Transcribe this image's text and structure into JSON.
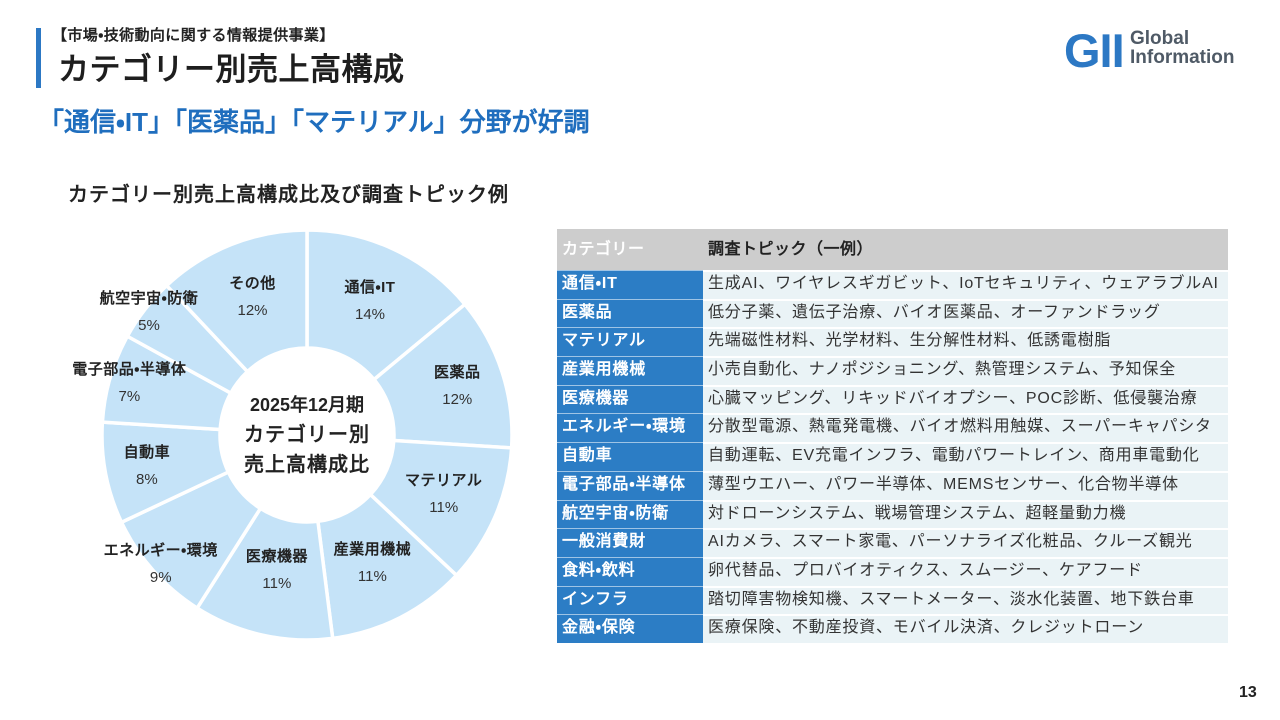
{
  "header": {
    "kicker": "【市場・技術動向に関する情報提供事業】",
    "title": "カテゴリー別売上高構成",
    "subtitle": "「通信・IT」「医薬品」「マテリアル」分野が好調"
  },
  "logo": {
    "mark": "GII",
    "line1": "Global",
    "line2": "Information"
  },
  "chart_data": [
    {
      "type": "pie",
      "donut": true,
      "title": "カテゴリー別売上高構成比及び調査トピック例",
      "center_label": [
        "2025年12月期",
        "カテゴリー別",
        "売上高構成比"
      ],
      "categories": [
        "通信・IT",
        "医薬品",
        "マテリアル",
        "産業用機械",
        "医療機器",
        "エネルギー・環境",
        "自動車",
        "電子部品・半導体",
        "航空宇宙・防衛",
        "その他"
      ],
      "values": [
        14,
        12,
        11,
        11,
        11,
        9,
        8,
        7,
        5,
        12
      ],
      "data_labels": [
        "14%",
        "12%",
        "11%",
        "11%",
        "11%",
        "9%",
        "8%",
        "7%",
        "5%",
        "12%"
      ]
    },
    {
      "type": "table",
      "columns": [
        "カテゴリー",
        "調査トピック（一例）"
      ],
      "rows": [
        [
          "通信・IT",
          "生成AI、ワイヤレスギガビット、IoTセキュリティ、ウェアラブルAI"
        ],
        [
          "医薬品",
          "低分子薬、遺伝子治療、バイオ医薬品、オーファンドラッグ"
        ],
        [
          "マテリアル",
          "先端磁性材料、光学材料、生分解性材料、低誘電樹脂"
        ],
        [
          "産業用機械",
          "小売自動化、ナノポジショニング、熱管理システム、予知保全"
        ],
        [
          "医療機器",
          "心臓マッピング、リキッドバイオプシー、POC診断、低侵襲治療"
        ],
        [
          "エネルギー・環境",
          "分散型電源、熱電発電機、バイオ燃料用触媒、スーパーキャパシタ"
        ],
        [
          "自動車",
          "自動運転、EV充電インフラ、電動パワートレイン、商用車電動化"
        ],
        [
          "電子部品・半導体",
          "薄型ウエハー、パワー半導体、MEMSセンサー、化合物半導体"
        ],
        [
          "航空宇宙・防衛",
          "対ドローンシステム、戦場管理システム、超軽量動力機"
        ],
        [
          "一般消費財",
          "AIカメラ、スマート家電、パーソナライズ化粧品、クルーズ観光"
        ],
        [
          "食料・飲料",
          "卵代替品、プロバイオティクス、スムージー、ケアフード"
        ],
        [
          "インフラ",
          "踏切障害物検知機、スマートメーター、淡水化装置、地下鉄台車"
        ],
        [
          "金融・保険",
          "医療保険、不動産投資、モバイル決済、クレジットローン"
        ]
      ]
    }
  ],
  "page_number": "13",
  "colors": {
    "accent": "#2c78c4",
    "subtitle": "#1f6ebe",
    "slice_fill": "#c5e3f8",
    "slice_separator": "#ffffff",
    "table_header_bg": "#cdcdcd",
    "table_category_bg": "#2c7dc5",
    "table_topic_bg": "#eaf3f6",
    "logo_text": "#4f5a66"
  }
}
